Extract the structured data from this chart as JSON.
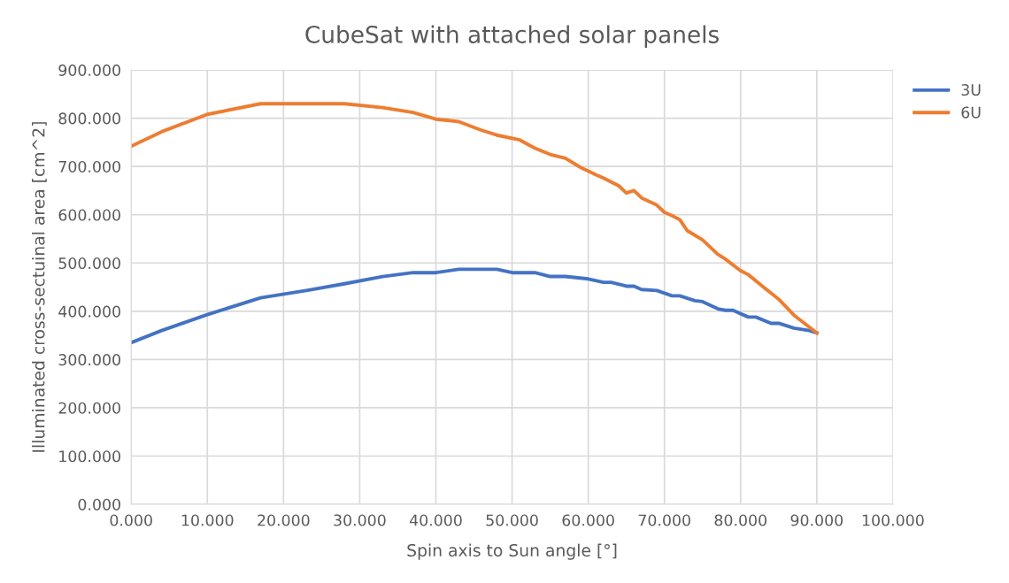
{
  "chart_data": {
    "type": "line",
    "title": "CubeSat with attached solar panels",
    "xlabel": "Spin axis to Sun angle [°]",
    "ylabel": "Illuminated cross-sectuinal area [cm^2]",
    "series": [
      {
        "name": "3U",
        "color": "#4472c4",
        "x": [
          0,
          4,
          10,
          17,
          23,
          28,
          33,
          37,
          40,
          43,
          48,
          50,
          53,
          55,
          57,
          60,
          62,
          63,
          65,
          66,
          67,
          69,
          71,
          72,
          74,
          75,
          77,
          78,
          79,
          81,
          82,
          84,
          85,
          87,
          89,
          90
        ],
        "values": [
          335,
          360,
          393,
          428,
          443,
          457,
          472,
          480,
          480,
          487,
          487,
          480,
          480,
          472,
          472,
          467,
          460,
          460,
          452,
          452,
          445,
          443,
          432,
          432,
          422,
          420,
          405,
          402,
          402,
          388,
          388,
          375,
          375,
          365,
          360,
          355
        ]
      },
      {
        "name": "6U",
        "color": "#ed7d31",
        "x": [
          0,
          4,
          10,
          17,
          23,
          28,
          33,
          37,
          40,
          43,
          46,
          48,
          51,
          53,
          55,
          57,
          59,
          61,
          62,
          64,
          65,
          66,
          67,
          69,
          70,
          71,
          72,
          73,
          75,
          77,
          78,
          80,
          81,
          83,
          85,
          87,
          90
        ],
        "values": [
          742,
          772,
          808,
          830,
          830,
          830,
          822,
          812,
          798,
          793,
          775,
          765,
          755,
          738,
          725,
          717,
          698,
          683,
          676,
          660,
          645,
          650,
          635,
          620,
          605,
          598,
          590,
          567,
          548,
          518,
          508,
          484,
          476,
          450,
          425,
          392,
          355
        ]
      }
    ],
    "xlim": [
      0,
      100
    ],
    "xticks": [
      {
        "value": 0,
        "label": "0.000"
      },
      {
        "value": 10,
        "label": "10.000"
      },
      {
        "value": 20,
        "label": "20.000"
      },
      {
        "value": 30,
        "label": "30.000"
      },
      {
        "value": 40,
        "label": "40.000"
      },
      {
        "value": 50,
        "label": "50.000"
      },
      {
        "value": 60,
        "label": "60.000"
      },
      {
        "value": 70,
        "label": "70.000"
      },
      {
        "value": 80,
        "label": "80.000"
      },
      {
        "value": 90,
        "label": "90.000"
      },
      {
        "value": 100,
        "label": "100.000"
      }
    ],
    "ylim": [
      0,
      900
    ],
    "yticks": [
      {
        "value": 0,
        "label": "0.000"
      },
      {
        "value": 100,
        "label": "100.000"
      },
      {
        "value": 200,
        "label": "200.000"
      },
      {
        "value": 300,
        "label": "300.000"
      },
      {
        "value": 400,
        "label": "400.000"
      },
      {
        "value": 500,
        "label": "500.000"
      },
      {
        "value": 600,
        "label": "600.000"
      },
      {
        "value": 700,
        "label": "700.000"
      },
      {
        "value": 800,
        "label": "800.000"
      },
      {
        "value": 900,
        "label": "900.000"
      }
    ],
    "grid": true,
    "legend": "right",
    "marker": "none",
    "line_style": "solid"
  }
}
